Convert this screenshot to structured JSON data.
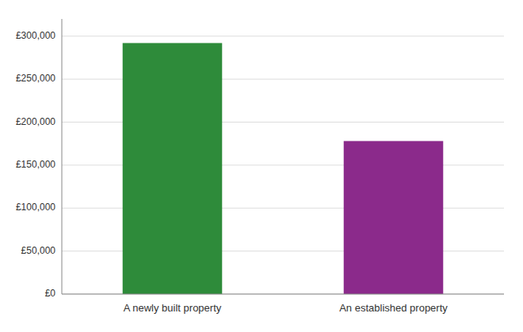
{
  "chart_data": {
    "type": "bar",
    "categories": [
      "A newly built property",
      "An established property"
    ],
    "values": [
      292000,
      178000
    ],
    "colors": [
      "#2e8b3a",
      "#8b2a8b"
    ],
    "ylim": [
      0,
      320000
    ],
    "yticks": [
      {
        "value": 0,
        "label": "£0"
      },
      {
        "value": 50000,
        "label": "£50,000"
      },
      {
        "value": 100000,
        "label": "£100,000"
      },
      {
        "value": 150000,
        "label": "£150,000"
      },
      {
        "value": 200000,
        "label": "£200,000"
      },
      {
        "value": 250000,
        "label": "£250,000"
      },
      {
        "value": 300000,
        "label": "£300,000"
      }
    ],
    "grid": true
  }
}
